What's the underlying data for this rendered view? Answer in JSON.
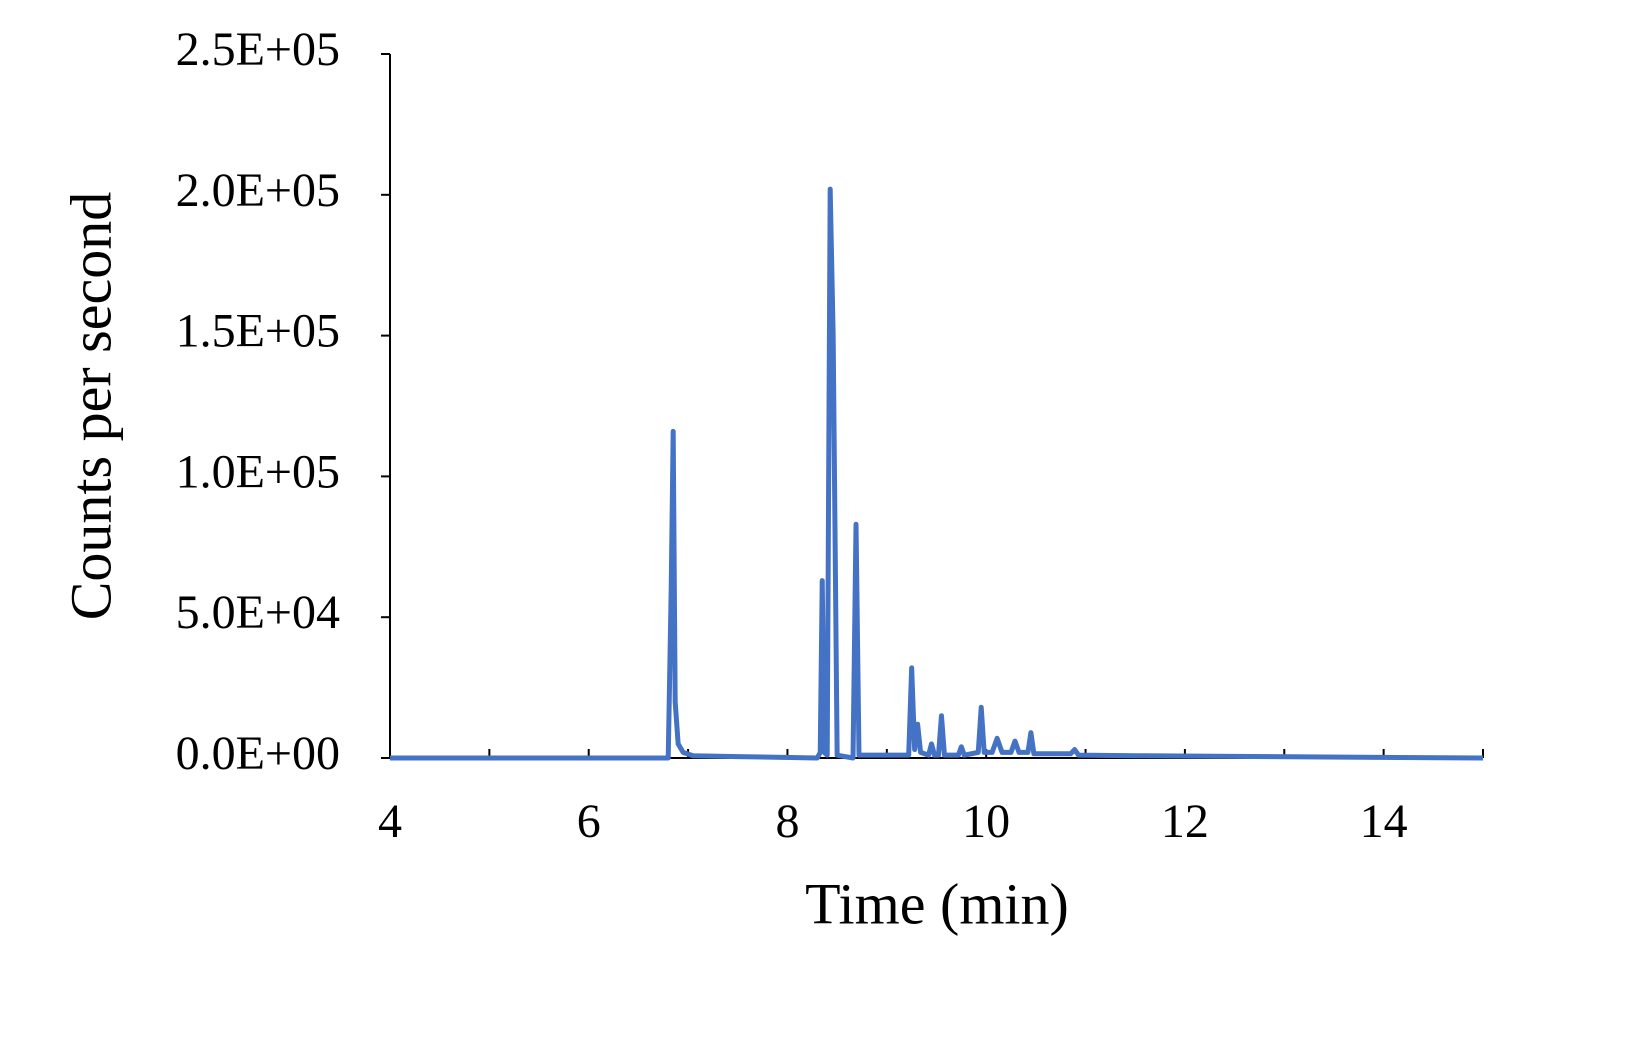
{
  "chart_data": {
    "type": "line",
    "xlabel": "Time (min)",
    "ylabel": "Counts per second",
    "xlim": [
      4,
      15
    ],
    "xticks": [
      4,
      6,
      8,
      10,
      12,
      14
    ],
    "xminorticks": [
      5,
      7,
      9,
      11,
      13,
      15
    ],
    "ylim": [
      0,
      250000
    ],
    "yticks": [
      {
        "value": 0,
        "label": "0.0E+00"
      },
      {
        "value": 50000,
        "label": "5.0E+04"
      },
      {
        "value": 100000,
        "label": "1.0E+05"
      },
      {
        "value": 150000,
        "label": "1.5E+05"
      },
      {
        "value": 200000,
        "label": "2.0E+05"
      },
      {
        "value": 250000,
        "label": "2.5E+05"
      }
    ],
    "grid": false,
    "x": [
      4,
      6.8,
      6.83,
      6.85,
      6.87,
      6.9,
      6.95,
      7.05,
      7.5,
      8.3,
      8.33,
      8.35,
      8.37,
      8.4,
      8.43,
      8.46,
      8.5,
      8.66,
      8.69,
      8.72,
      9.22,
      9.25,
      9.28,
      9.31,
      9.34,
      9.42,
      9.45,
      9.48,
      9.52,
      9.55,
      9.58,
      9.72,
      9.75,
      9.78,
      9.92,
      9.95,
      9.98,
      10.06,
      10.11,
      10.16,
      10.25,
      10.29,
      10.33,
      10.42,
      10.45,
      10.48,
      10.85,
      10.89,
      10.93,
      11.5,
      15
    ],
    "series": [
      {
        "color": "#4472c4",
        "values": [
          0,
          0,
          60000,
          116000,
          20000,
          5000,
          2000,
          800,
          500,
          0,
          2000,
          63000,
          2000,
          1000,
          202000,
          150000,
          1000,
          0,
          83000,
          1000,
          1000,
          32000,
          3000,
          12000,
          2000,
          1000,
          5000,
          1000,
          1000,
          15000,
          1000,
          1000,
          4000,
          1000,
          2000,
          18000,
          2000,
          2000,
          7000,
          2000,
          2000,
          6000,
          2000,
          2000,
          9000,
          1500,
          1500,
          3000,
          1000,
          800,
          0
        ]
      }
    ]
  }
}
